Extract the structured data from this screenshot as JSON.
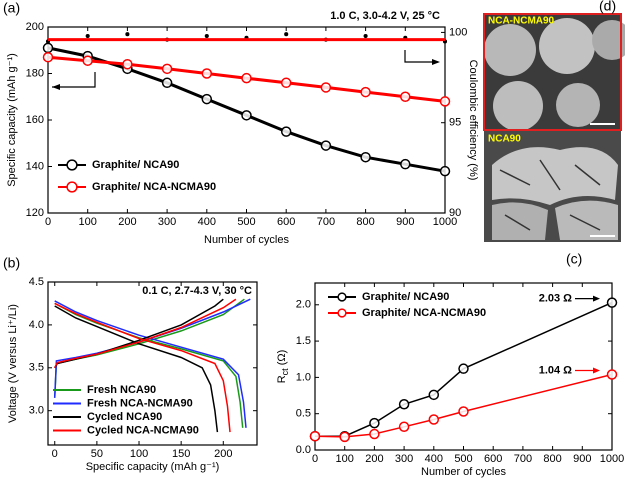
{
  "chart_data": [
    {
      "type": "line",
      "panel_label": "(a)",
      "annotation": "1.0 C, 3.0-4.2 V, 25 °C",
      "x_label": "Number of cycles",
      "y_label": "Specific capacity (mAh g⁻¹)",
      "y2_label": "Coulombic efficiency (%)",
      "x": [
        0,
        100,
        200,
        300,
        400,
        500,
        600,
        700,
        800,
        900,
        1000
      ],
      "xlim": [
        0,
        1000
      ],
      "xticks": [
        0,
        100,
        200,
        300,
        400,
        500,
        600,
        700,
        800,
        900,
        1000
      ],
      "ylim": [
        120,
        200
      ],
      "yticks": [
        120,
        140,
        160,
        180,
        200
      ],
      "y2lim": [
        90,
        100.3
      ],
      "y2ticks": [
        90,
        95,
        100
      ],
      "legend": "lower left",
      "series": [
        {
          "name": "Graphite/ NCA90",
          "color": "#000000",
          "marker": "open-circle",
          "values": [
            191,
            187.5,
            182,
            176,
            169,
            162,
            155,
            149,
            144,
            141,
            138
          ]
        },
        {
          "name": "Graphite/ NCA-NCMA90",
          "color": "#ff0000",
          "marker": "open-circle",
          "values": [
            187,
            185.5,
            184,
            182,
            180,
            178,
            176,
            174,
            172,
            170,
            168
          ]
        },
        {
          "color": "#000000",
          "marker": "dot",
          "line": false,
          "axis": "y2",
          "values": [
            99.5,
            99.8,
            99.9,
            99.6,
            99.8,
            99.7,
            99.9,
            99.6,
            99.8,
            99.7,
            99.5
          ]
        },
        {
          "color": "#ff0000",
          "marker": "none",
          "axis": "y2",
          "values": [
            99.6,
            99.6,
            99.6,
            99.6,
            99.6,
            99.6,
            99.6,
            99.6,
            99.6,
            99.6,
            99.6
          ]
        }
      ]
    },
    {
      "type": "line",
      "panel_label": "(b)",
      "annotation": "0.1 C, 2.7-4.3 V, 30 °C",
      "x_label": "Specific capacity (mAh g⁻¹)",
      "y_label": "Voltage (V versus Li⁺/Li)",
      "xlim": [
        -8,
        240
      ],
      "xticks": [
        0,
        50,
        100,
        150,
        200
      ],
      "ylim": [
        2.6,
        4.5
      ],
      "yticks": [
        {
          "value": 3,
          "label": "3.0"
        },
        3.5,
        {
          "value": 4,
          "label": "4.0"
        },
        4.5
      ],
      "legend": "lower left",
      "series": [
        {
          "name": "Fresh NCA90",
          "color": "#1a9a1a",
          "marker": "none",
          "x": [
            0,
            2,
            25,
            50,
            100,
            150,
            200,
            225,
            null,
            0,
            25,
            50,
            100,
            150,
            200,
            215,
            220,
            223
          ],
          "values": [
            3.15,
            3.55,
            3.6,
            3.65,
            3.78,
            3.93,
            4.12,
            4.3,
            null,
            4.25,
            4.12,
            4.02,
            3.85,
            3.72,
            3.58,
            3.4,
            3.1,
            2.8
          ]
        },
        {
          "name": "Fresh NCA-NCMA90",
          "color": "#1f2bff",
          "marker": "none",
          "x": [
            0,
            2,
            25,
            50,
            100,
            150,
            200,
            232,
            null,
            0,
            25,
            50,
            100,
            150,
            200,
            218,
            224,
            227
          ],
          "values": [
            3.15,
            3.58,
            3.62,
            3.67,
            3.8,
            3.96,
            4.15,
            4.3,
            null,
            4.28,
            4.15,
            4.05,
            3.88,
            3.74,
            3.6,
            3.42,
            3.1,
            2.8
          ]
        },
        {
          "name": "Cycled NCA90",
          "color": "#000000",
          "marker": "none",
          "x": [
            0,
            3,
            25,
            50,
            100,
            150,
            190,
            200,
            null,
            0,
            25,
            50,
            100,
            150,
            175,
            185,
            190,
            193
          ],
          "values": [
            3.5,
            3.55,
            3.6,
            3.66,
            3.82,
            4.0,
            4.22,
            4.3,
            null,
            4.22,
            4.08,
            3.98,
            3.78,
            3.62,
            3.5,
            3.3,
            3.0,
            2.75
          ]
        },
        {
          "name": "Cycled NCA-NCMA90",
          "color": "#ff0000",
          "marker": "none",
          "x": [
            0,
            3,
            25,
            50,
            100,
            150,
            200,
            215,
            null,
            0,
            25,
            50,
            100,
            150,
            190,
            200,
            205,
            208
          ],
          "values": [
            3.5,
            3.56,
            3.61,
            3.66,
            3.8,
            3.97,
            4.2,
            4.3,
            null,
            4.25,
            4.13,
            4.03,
            3.84,
            3.7,
            3.55,
            3.35,
            3.05,
            2.75
          ]
        }
      ]
    },
    {
      "type": "line",
      "panel_label": "(c)",
      "x_label": "Number of cycles",
      "y_label": "R",
      "y_label_sub": "ct",
      "y_label_unit": "(Ω)",
      "x": [
        0,
        100,
        200,
        300,
        400,
        500,
        1000
      ],
      "xlim": [
        0,
        1000
      ],
      "xticks": [
        0,
        100,
        200,
        300,
        400,
        500,
        600,
        700,
        800,
        900,
        1000
      ],
      "ylim": [
        0,
        2.3
      ],
      "yticks": [
        {
          "value": 0,
          "label": "0.0"
        },
        0.5,
        {
          "value": 1,
          "label": "1.0"
        },
        1.5,
        {
          "value": 2,
          "label": "2.0"
        }
      ],
      "legend": "upper left",
      "annotations": [
        {
          "text": "2.03 Ω",
          "color": "#000000"
        },
        {
          "text": "1.04 Ω",
          "color": "#ff0000"
        }
      ],
      "series": [
        {
          "name": "Graphite/ NCA90",
          "color": "#000000",
          "marker": "open-circle",
          "values": [
            0.19,
            0.19,
            0.37,
            0.63,
            0.76,
            1.12,
            2.03
          ]
        },
        {
          "name": "Graphite/ NCA-NCMA90",
          "color": "#ff0000",
          "marker": "open-circle",
          "values": [
            0.19,
            0.18,
            0.22,
            0.32,
            0.42,
            0.53,
            1.04
          ]
        }
      ]
    }
  ],
  "images": {
    "panel_label": "(d)",
    "top_label": "NCA-NCMA90",
    "bottom_label": "NCA90"
  }
}
